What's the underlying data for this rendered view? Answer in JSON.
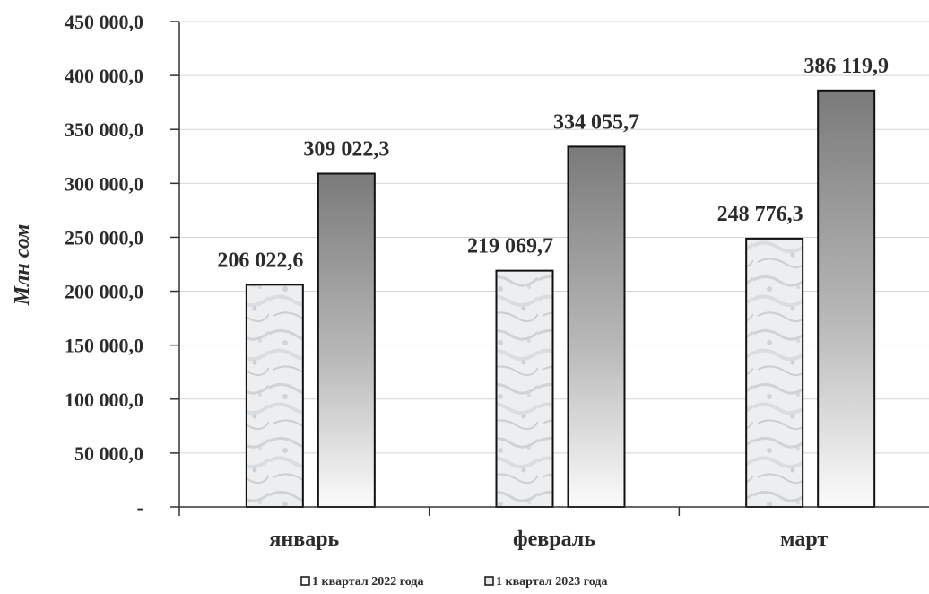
{
  "chart_data": {
    "type": "bar",
    "title": "",
    "xlabel": "",
    "ylabel": "Млн сом",
    "categories": [
      "январь",
      "февраль",
      "март"
    ],
    "series": [
      {
        "name": "1 квартал 2022 года",
        "values": [
          206022.6,
          219069.7,
          248776.3
        ],
        "labels": [
          "206 022,6",
          "219 069,7",
          "248 776,3"
        ]
      },
      {
        "name": "1 квартал 2023 года",
        "values": [
          309022.3,
          334055.7,
          386119.9
        ],
        "labels": [
          "309 022,3",
          "334 055,7",
          "386 119,9"
        ]
      }
    ],
    "ylim": [
      0,
      450000
    ],
    "yticks": [
      0,
      50000,
      100000,
      150000,
      200000,
      250000,
      300000,
      350000,
      400000,
      450000
    ],
    "ytick_labels": [
      "-",
      "50 000,0",
      "100 000,0",
      "150 000,0",
      "200 000,0",
      "250 000,0",
      "300 000,0",
      "350 000,0",
      "400 000,0",
      "450 000,0"
    ],
    "grid": true,
    "legend_position": "bottom-center"
  }
}
